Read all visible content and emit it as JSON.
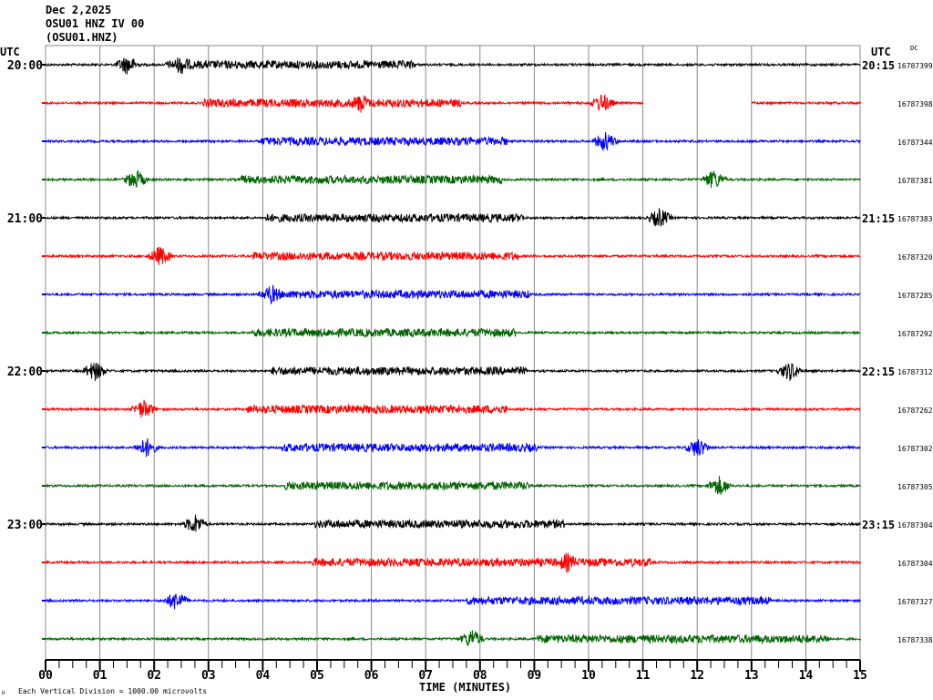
{
  "header": {
    "date": "Dec 2,2025",
    "station": "OSU01 HNZ IV 00",
    "channel": "(OSU01.HNZ)"
  },
  "chart_data": {
    "type": "line",
    "title": "Dec 2,2025",
    "xlabel": "TIME (MINUTES)",
    "xlim": [
      0,
      15
    ],
    "x_ticks": [
      "00",
      "01",
      "02",
      "03",
      "04",
      "05",
      "06",
      "07",
      "08",
      "09",
      "10",
      "11",
      "12",
      "13",
      "14",
      "15"
    ],
    "left_axis_title": "UTC",
    "right_axis_title": "UTC",
    "dc_label": "DC",
    "grid": true,
    "scale_note": "Each Vertical Division = 1000.00 microvolts",
    "colors": [
      "#000000",
      "#ff0000",
      "#0000ff",
      "#006400"
    ],
    "rows": [
      {
        "left": "20:00",
        "right": "20:15",
        "dc": "16787399",
        "burst": [
          2.2,
          6.8
        ],
        "events": [
          1.5,
          2.5
        ],
        "gaps": []
      },
      {
        "left": "",
        "right": "",
        "dc": "16787398",
        "burst": [
          2.9,
          7.65
        ],
        "events": [
          5.8,
          10.25
        ],
        "gaps": [
          [
            11.0,
            13.0
          ]
        ]
      },
      {
        "left": "",
        "right": "",
        "dc": "16787344",
        "burst": [
          3.95,
          8.5
        ],
        "events": [
          10.3
        ],
        "gaps": []
      },
      {
        "left": "",
        "right": "",
        "dc": "16787381",
        "burst": [
          3.6,
          8.4
        ],
        "events": [
          1.65,
          12.3
        ],
        "gaps": []
      },
      {
        "left": "21:00",
        "right": "21:15",
        "dc": "16787383",
        "burst": [
          4.05,
          8.8
        ],
        "events": [
          11.3
        ],
        "gaps": []
      },
      {
        "left": "",
        "right": "",
        "dc": "16787320",
        "burst": [
          3.8,
          8.7
        ],
        "events": [
          2.1
        ],
        "gaps": []
      },
      {
        "left": "",
        "right": "",
        "dc": "16787285",
        "burst": [
          4.1,
          8.9
        ],
        "events": [
          4.15
        ],
        "gaps": []
      },
      {
        "left": "",
        "right": "",
        "dc": "16787292",
        "burst": [
          3.8,
          8.65
        ],
        "events": [],
        "gaps": []
      },
      {
        "left": "22:00",
        "right": "22:15",
        "dc": "16787312",
        "burst": [
          4.15,
          8.85
        ],
        "events": [
          0.9,
          13.7
        ],
        "gaps": []
      },
      {
        "left": "",
        "right": "",
        "dc": "16787262",
        "burst": [
          3.7,
          8.5
        ],
        "events": [
          1.8
        ],
        "gaps": []
      },
      {
        "left": "",
        "right": "",
        "dc": "16787302",
        "burst": [
          4.35,
          9.05
        ],
        "events": [
          1.85,
          12.0
        ],
        "gaps": []
      },
      {
        "left": "",
        "right": "",
        "dc": "16787305",
        "burst": [
          4.4,
          8.9
        ],
        "events": [
          12.4
        ],
        "gaps": []
      },
      {
        "left": "23:00",
        "right": "23:15",
        "dc": "16787304",
        "burst": [
          4.95,
          9.55
        ],
        "events": [
          2.75
        ],
        "gaps": []
      },
      {
        "left": "",
        "right": "",
        "dc": "16787304",
        "burst": [
          4.9,
          11.15
        ],
        "events": [
          9.6
        ],
        "gaps": []
      },
      {
        "left": "",
        "right": "",
        "dc": "16787327",
        "burst": [
          7.75,
          13.35
        ],
        "events": [
          2.4
        ],
        "gaps": []
      },
      {
        "left": "",
        "right": "",
        "dc": "16787338",
        "burst": [
          9.05,
          14.45
        ],
        "events": [
          7.85
        ],
        "gaps": []
      }
    ]
  }
}
